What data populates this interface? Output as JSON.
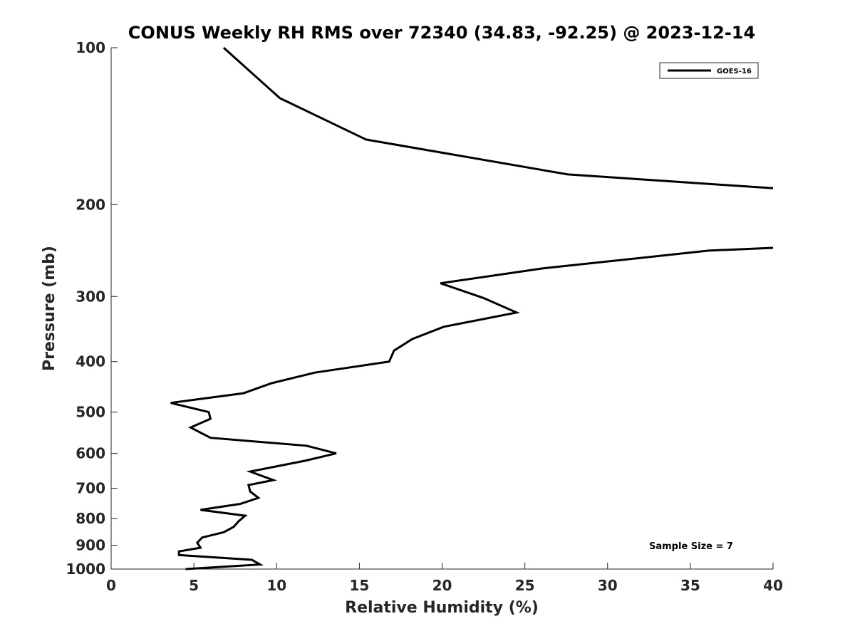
{
  "chart_data": {
    "type": "line",
    "title": "CONUS Weekly RH RMS over 72340 (34.83, -92.25) @ 2023-12-14",
    "xlabel": "Relative Humidity (%)",
    "ylabel": "Pressure (mb)",
    "xlim": [
      0,
      40
    ],
    "ylim": [
      100,
      1000
    ],
    "yscale": "log",
    "y_reversed": true,
    "grid": false,
    "legend_placement": "top-right",
    "x_ticks": [
      "0",
      "5",
      "10",
      "15",
      "20",
      "25",
      "30",
      "35",
      "40"
    ],
    "y_ticks": [
      "100",
      "200",
      "300",
      "400",
      "500",
      "600",
      "700",
      "800",
      "900",
      "1000"
    ],
    "annotation": "Sample Size = 7",
    "series": [
      {
        "name": "GOES-16",
        "color": "#000000",
        "segments": [
          {
            "x": [
              6.8,
              10.2,
              15.4,
              27.6,
              40
            ],
            "y": [
              100,
              125,
              150,
              175,
              186
            ]
          },
          {
            "x": [
              40,
              36.1,
              26.1,
              19.9,
              22.5,
              24.5,
              20.1,
              18.2,
              17.1,
              16.8,
              12.3,
              9.7,
              8.0,
              3.6,
              5.9,
              6.0,
              4.8,
              6.0,
              11.8,
              13.6,
              11.7,
              8.4,
              9.8,
              8.3,
              8.4,
              8.9,
              7.8,
              5.4,
              8.1,
              7.7,
              7.4,
              6.8,
              5.5,
              5.2,
              5.4,
              4.1,
              4.1,
              8.5,
              9.0,
              4.5
            ],
            "y": [
              242,
              245,
              265,
              283,
              302,
              322,
              343,
              362,
              381,
              400,
              420,
              440,
              460,
              480,
              500,
              515,
              535,
              560,
              580,
              600,
              620,
              650,
              675,
              690,
              710,
              730,
              750,
              770,
              790,
              810,
              830,
              850,
              870,
              890,
              910,
              925,
              940,
              960,
              980,
              1000
            ]
          }
        ]
      }
    ]
  }
}
